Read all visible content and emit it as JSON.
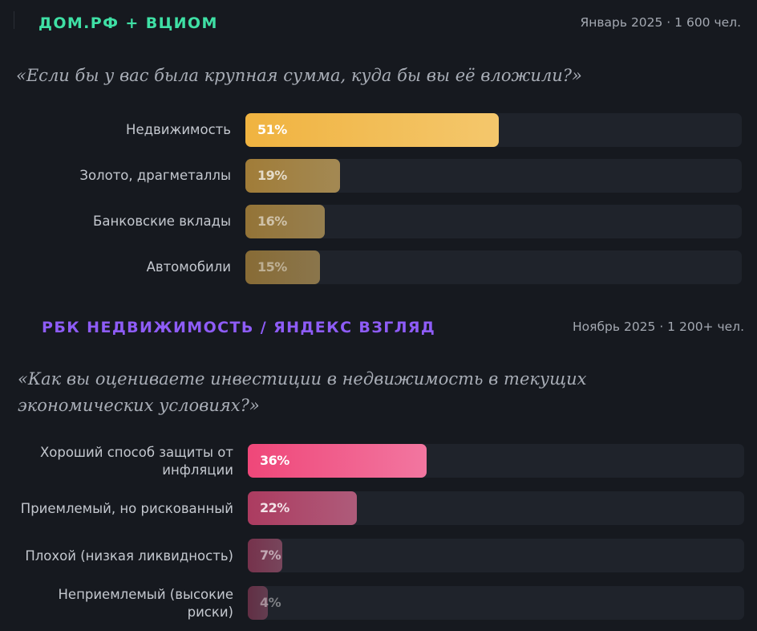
{
  "colors": {
    "background": "#16191f",
    "track": "#1f232b",
    "domrf_accent": "#3fe0a5",
    "rbc_accent": "#8e5cf7",
    "gold": "#f0b340",
    "pink": "#ef4779"
  },
  "sections": [
    {
      "source": "ДОМ.РФ + ВЦИОМ",
      "meta": "Январь 2025 · 1 600 чел.",
      "question": "«Если бы у вас была крупная сумма, куда бы вы её вложили?»"
    },
    {
      "source": "РБК НЕДВИЖИМОСТЬ / ЯНДЕКС ВЗГЛЯД",
      "meta": "Ноябрь 2025 · 1 200+ чел.",
      "question": "«Как вы оцениваете инвестиции в недвижимость в текущих экономических условиях?»"
    }
  ],
  "chart_data": [
    {
      "type": "bar",
      "orientation": "horizontal",
      "categories": [
        "Недвижимость",
        "Золото, драгметаллы",
        "Банковские вклады",
        "Автомобили"
      ],
      "values": [
        51,
        19,
        16,
        15
      ],
      "value_labels": [
        "51%",
        "19%",
        "16%",
        "15%"
      ],
      "xlim": [
        0,
        100
      ],
      "color": "#f0b340"
    },
    {
      "type": "bar",
      "orientation": "horizontal",
      "categories": [
        "Хороший способ защиты от инфляции",
        "Приемлемый, но рискованный",
        "Плохой (низкая ликвидность)",
        "Неприемлемый (высокие риски)"
      ],
      "values": [
        36,
        22,
        7,
        4
      ],
      "value_labels": [
        "36%",
        "22%",
        "7%",
        "4%"
      ],
      "xlim": [
        0,
        100
      ],
      "color": "#ef4779"
    }
  ]
}
